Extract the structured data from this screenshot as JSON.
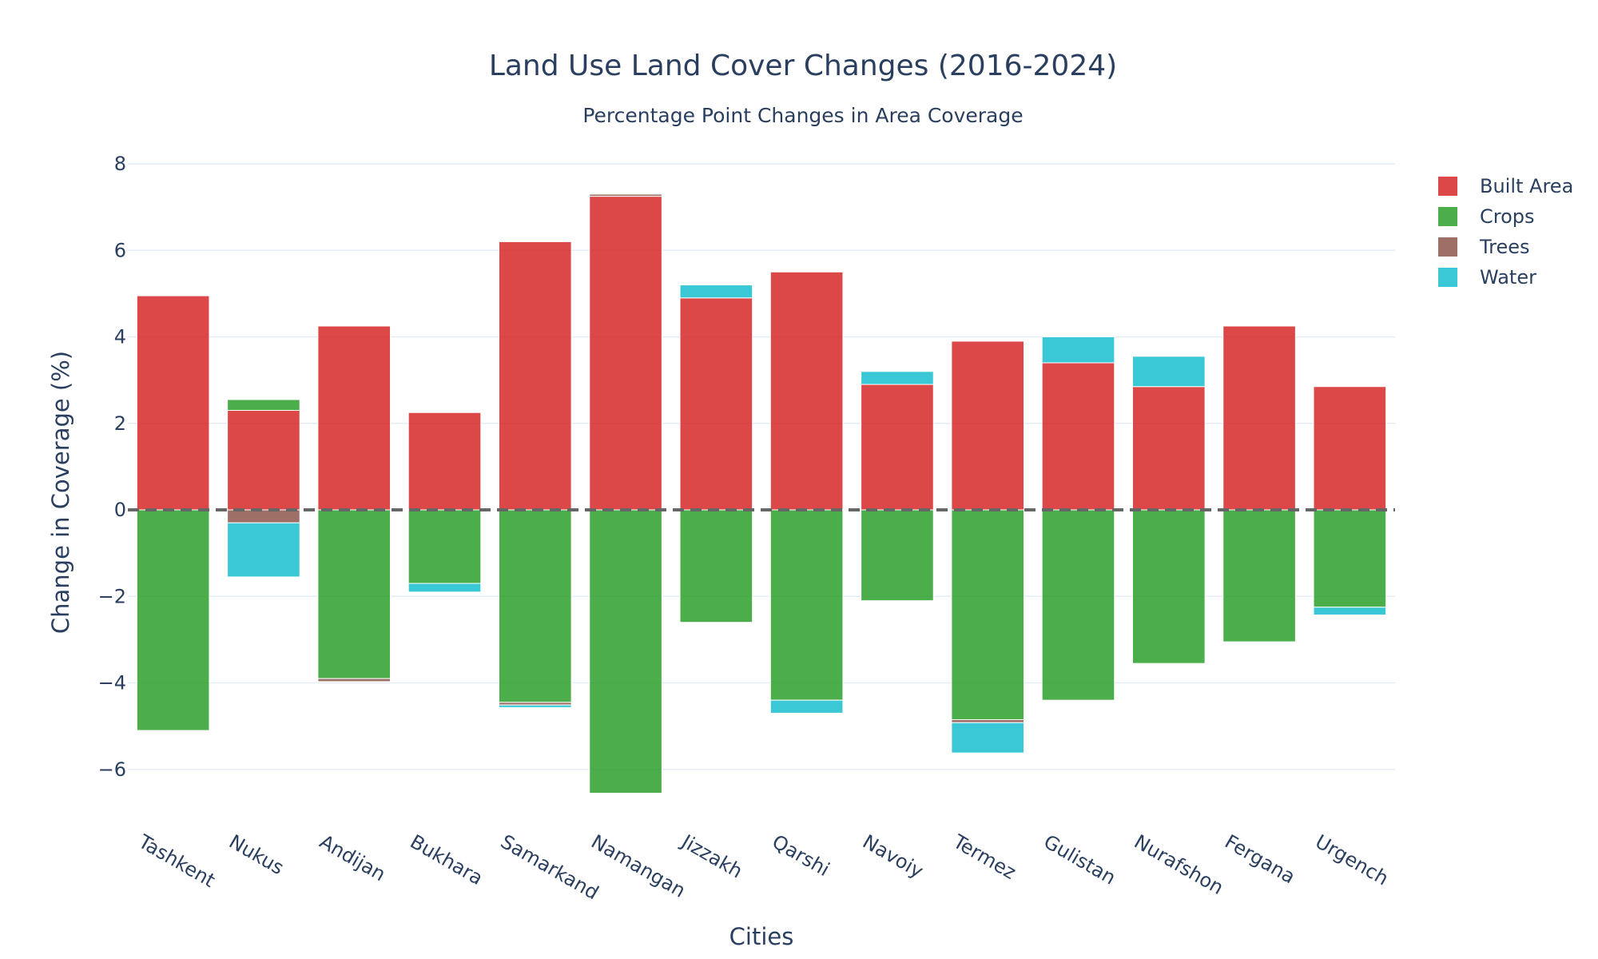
{
  "chart_data": {
    "type": "bar",
    "barmode": "relative",
    "title": "Land Use Land Cover Changes (2016-2024)",
    "subtitle": "Percentage Point Changes in Area Coverage",
    "xlabel": "Cities",
    "ylabel": "Change in Coverage (%)",
    "ylim": [
      -7.1,
      8.5
    ],
    "yticks": [
      -6,
      -4,
      -2,
      0,
      2,
      4,
      6,
      8
    ],
    "ytick_labels": [
      "−6",
      "−4",
      "−2",
      "0",
      "2",
      "4",
      "6",
      "8"
    ],
    "grid": true,
    "zero_line": "dashed",
    "legend_position": "top-right",
    "categories": [
      "Tashkent",
      "Nukus",
      "Andijan",
      "Bukhara",
      "Samarkand",
      "Namangan",
      "Jizzakh",
      "Qarshi",
      "Navoiy",
      "Termez",
      "Gulistan",
      "Nurafshon",
      "Fergana",
      "Urgench"
    ],
    "series": [
      {
        "name": "Built Area",
        "color": "#d62728",
        "values": [
          4.95,
          2.3,
          4.25,
          2.25,
          6.2,
          7.25,
          4.9,
          5.5,
          2.9,
          3.9,
          3.4,
          2.85,
          4.25,
          2.85
        ]
      },
      {
        "name": "Crops",
        "color": "#2ca02c",
        "values": [
          -5.1,
          0.25,
          -3.9,
          -1.7,
          -4.45,
          -6.55,
          -2.6,
          -4.4,
          -2.1,
          -4.85,
          -4.4,
          -3.55,
          -3.05,
          -2.25
        ]
      },
      {
        "name": "Trees",
        "color": "#8c564b",
        "values": [
          0.0,
          -0.3,
          -0.07,
          0.0,
          -0.06,
          0.05,
          0.0,
          0.0,
          0.0,
          -0.07,
          0.0,
          0.0,
          0.0,
          0.0
        ]
      },
      {
        "name": "Water",
        "color": "#17becf",
        "values": [
          0.0,
          -1.25,
          0.0,
          -0.2,
          -0.06,
          0.02,
          0.3,
          -0.3,
          0.3,
          -0.7,
          0.6,
          0.7,
          0.0,
          -0.18
        ]
      }
    ]
  }
}
